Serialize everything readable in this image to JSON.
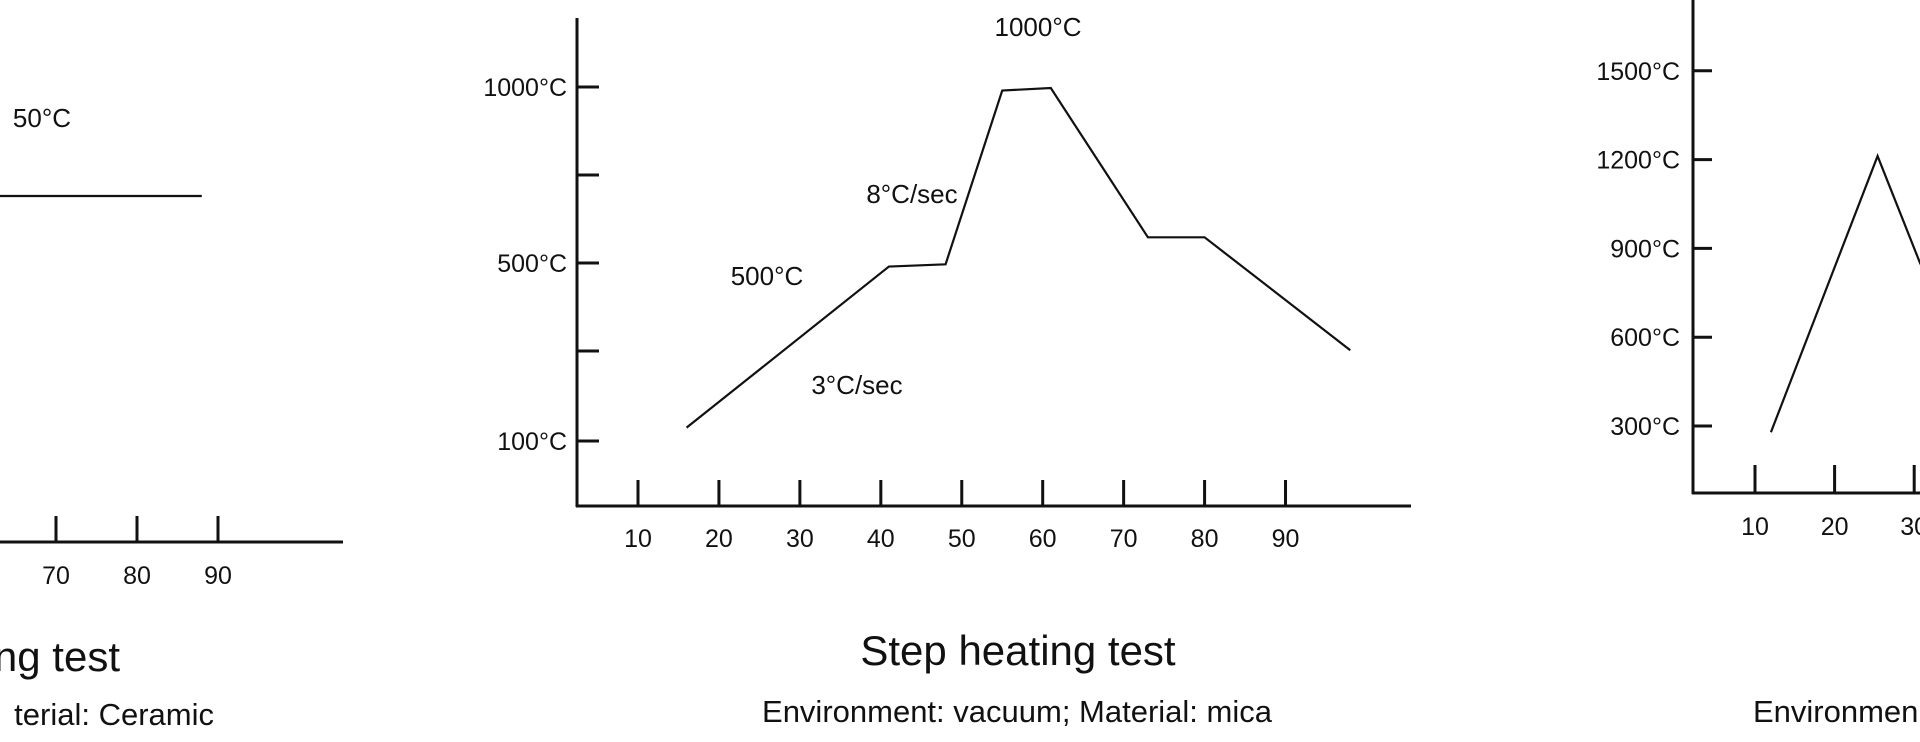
{
  "chart_data": [
    {
      "type": "line",
      "title": "ng test",
      "subtitle": "terial: Ceramic",
      "x_ticks": [
        "70",
        "80",
        "90"
      ],
      "annotations": [
        "50°C"
      ],
      "series": [
        {
          "x": [
            63,
            88
          ]
        }
      ],
      "grid": false
    },
    {
      "type": "line",
      "title": "Step heating test",
      "subtitle": "Environment: vacuum; Material: mica",
      "x_ticks": [
        "10",
        "20",
        "30",
        "40",
        "50",
        "60",
        "70",
        "80",
        "90"
      ],
      "y_ticks": [
        "1000°C",
        "",
        "500°C",
        "",
        "100°C"
      ],
      "annotations": [
        "1000°C",
        "8°C/sec",
        "500°C",
        "3°C/sec"
      ],
      "series": [
        {
          "x": [
            16,
            41,
            48,
            55,
            61,
            73,
            80,
            98
          ],
          "y": [
            130,
            492,
            497,
            990,
            997,
            573,
            573,
            304
          ]
        }
      ],
      "grid": false
    },
    {
      "type": "line",
      "subtitle": "Environmen",
      "x_ticks": [
        "10",
        "20",
        "30"
      ],
      "y_ticks": [
        "1500°C",
        "1200°C",
        "900°C",
        "600°C",
        "300°C"
      ],
      "series": [
        {
          "x": [
            12,
            25.4,
            30.8
          ],
          "y": [
            279,
            1212,
            846
          ]
        }
      ],
      "grid": false
    }
  ]
}
